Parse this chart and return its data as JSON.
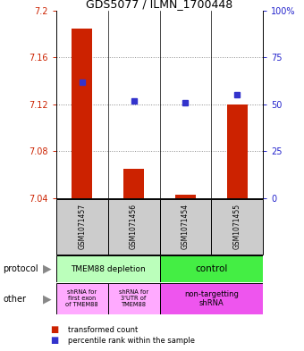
{
  "title": "GDS5077 / ILMN_1700448",
  "samples": [
    "GSM1071457",
    "GSM1071456",
    "GSM1071454",
    "GSM1071455"
  ],
  "bar_values": [
    7.185,
    7.065,
    7.043,
    7.12
  ],
  "bar_base": 7.04,
  "blue_values": [
    62,
    52,
    51,
    55
  ],
  "ylim": [
    7.04,
    7.2
  ],
  "yticks": [
    7.04,
    7.08,
    7.12,
    7.16,
    7.2
  ],
  "ytick_labels": [
    "7.04",
    "7.08",
    "7.12",
    "7.16",
    "7.2"
  ],
  "y2ticks": [
    0,
    25,
    50,
    75,
    100
  ],
  "y2tick_labels": [
    "0",
    "25",
    "50",
    "75",
    "100%"
  ],
  "bar_color": "#cc2200",
  "blue_color": "#3333cc",
  "protocol_labels": [
    "TMEM88 depletion",
    "control"
  ],
  "protocol_colors": [
    "#bbffbb",
    "#44ee44"
  ],
  "other_labels": [
    "shRNA for\nfirst exon\nof TMEM88",
    "shRNA for\n3'UTR of\nTMEM88",
    "non-targetting\nshRNA"
  ],
  "other_colors": [
    "#ffaaff",
    "#ffaaff",
    "#ee55ee"
  ],
  "legend_red": "transformed count",
  "legend_blue": "percentile rank within the sample",
  "left_label_color": "#cc2200",
  "right_label_color": "#2222cc",
  "grid_color": "#888888",
  "sample_bg_color": "#cccccc"
}
